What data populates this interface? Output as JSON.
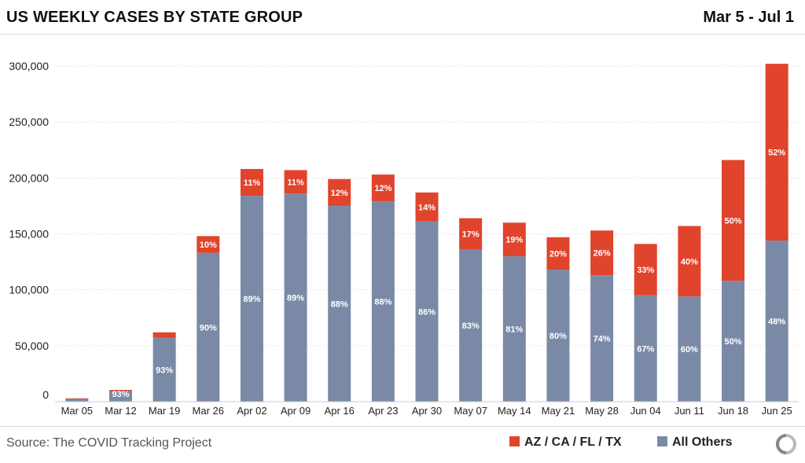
{
  "header": {
    "title": "US WEEKLY CASES BY STATE GROUP",
    "date_range": "Mar 5 - Jul 1"
  },
  "footer": {
    "source": "Source: The COVID Tracking Project"
  },
  "colors": {
    "group_a": "#e0442c",
    "others": "#7a8aa6",
    "grid": "#e6e6e6",
    "label": "#ffffff"
  },
  "chart_data": {
    "type": "bar",
    "stacked": true,
    "title": "US WEEKLY CASES BY STATE GROUP",
    "xlabel": "",
    "ylabel": "",
    "ylim": [
      0,
      300000
    ],
    "yticks": [
      0,
      50000,
      100000,
      150000,
      200000,
      250000,
      300000
    ],
    "ytick_labels": [
      "0",
      "50,000",
      "100,000",
      "150,000",
      "200,000",
      "250,000",
      "300,000"
    ],
    "categories": [
      "Mar 05",
      "Mar 12",
      "Mar 19",
      "Mar 26",
      "Apr 02",
      "Apr 09",
      "Apr 16",
      "Apr 23",
      "Apr 30",
      "May 07",
      "May 14",
      "May 21",
      "May 28",
      "Jun 04",
      "Jun 11",
      "Jun 18",
      "Jun 25"
    ],
    "series": [
      {
        "name": "All Others",
        "values": [
          2500,
          9500,
          57000,
          133000,
          184000,
          186000,
          175000,
          179000,
          161000,
          136000,
          130000,
          118000,
          113000,
          95000,
          94000,
          108000,
          144000
        ],
        "labels": [
          "",
          "93%",
          "93%",
          "90%",
          "89%",
          "89%",
          "88%",
          "88%",
          "86%",
          "83%",
          "81%",
          "80%",
          "74%",
          "67%",
          "60%",
          "50%",
          "48%"
        ]
      },
      {
        "name": "AZ / CA / FL / TX",
        "values": [
          500,
          1000,
          5000,
          15000,
          24000,
          21000,
          24000,
          24000,
          26000,
          28000,
          30000,
          29000,
          40000,
          46000,
          63000,
          108000,
          158000
        ],
        "labels": [
          "",
          "",
          "",
          "10%",
          "11%",
          "11%",
          "12%",
          "12%",
          "14%",
          "17%",
          "19%",
          "20%",
          "26%",
          "33%",
          "40%",
          "50%",
          "52%"
        ]
      }
    ],
    "legend": [
      "AZ / CA / FL / TX",
      "All Others"
    ],
    "legend_position": "bottom-right"
  }
}
